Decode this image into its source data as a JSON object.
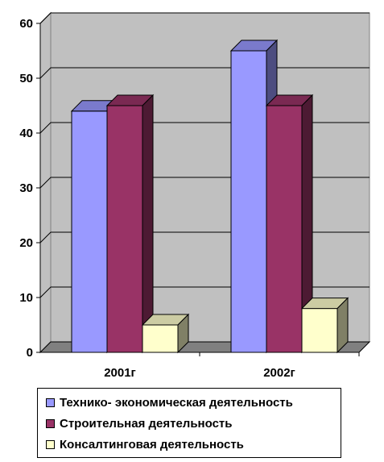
{
  "chart_data": {
    "type": "bar",
    "categories": [
      "2001г",
      "2002г"
    ],
    "series": [
      {
        "name": "Технико- экономическая деятельность",
        "values": [
          44,
          55
        ],
        "color": "#9999ff"
      },
      {
        "name": "Строительная деятельность",
        "values": [
          45,
          45
        ],
        "color": "#993366"
      },
      {
        "name": "Консалтинговая деятельность",
        "values": [
          5,
          8
        ],
        "color": "#ffffcc"
      }
    ],
    "yticks": [
      0,
      10,
      20,
      30,
      40,
      50,
      60
    ],
    "ylim": [
      0,
      60
    ],
    "grid": true,
    "legend": "bottom",
    "style": "3d-clustered",
    "colors": {
      "plot_wall": "#c0c0c0",
      "floor": "#808080",
      "gridline": "#000000"
    }
  }
}
